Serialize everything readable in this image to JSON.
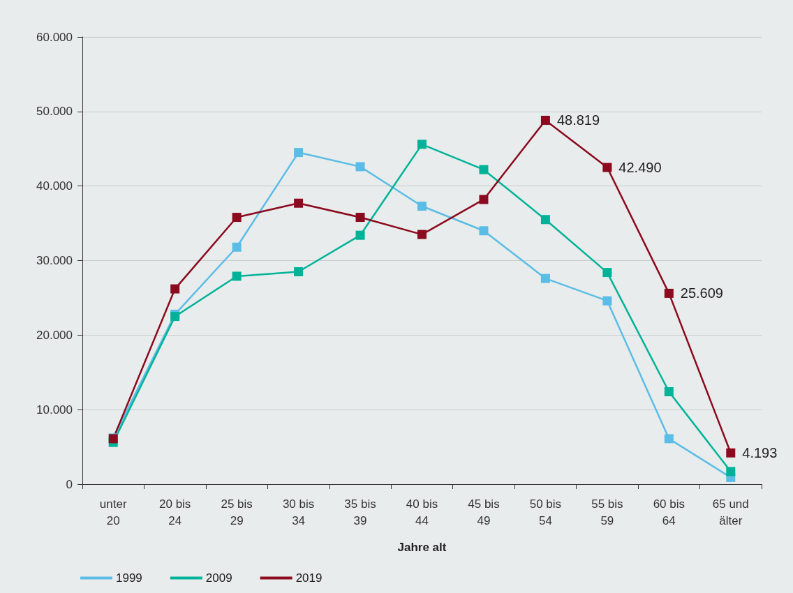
{
  "chart_data": {
    "type": "line",
    "xlabel": "Jahre alt",
    "categories": [
      "unter 20",
      "20 bis 24",
      "25 bis 29",
      "30 bis 34",
      "35 bis 39",
      "40 bis 44",
      "45 bis 49",
      "50 bis 54",
      "55 bis 59",
      "60 bis 64",
      "65 und älter"
    ],
    "series": [
      {
        "name": "1999",
        "color": "#5bbde6",
        "values": [
          6200,
          22800,
          31800,
          44500,
          42600,
          37300,
          34000,
          27600,
          24600,
          6100,
          900
        ]
      },
      {
        "name": "2009",
        "color": "#00b398",
        "values": [
          5600,
          22500,
          27900,
          28500,
          33400,
          45600,
          42200,
          35500,
          28400,
          12400,
          1700
        ]
      },
      {
        "name": "2019",
        "color": "#8b0a1e",
        "values": [
          6100,
          26200,
          35800,
          37700,
          35800,
          33500,
          38200,
          48819,
          42490,
          25609,
          4193
        ],
        "value_labels": [
          null,
          null,
          null,
          null,
          null,
          null,
          null,
          "48.819",
          "42.490",
          "25.609",
          "4.193"
        ]
      }
    ],
    "ylim": [
      0,
      60000
    ],
    "yticks": [
      {
        "value": 0,
        "label": "0"
      },
      {
        "value": 10000,
        "label": "10.000"
      },
      {
        "value": 20000,
        "label": "20.000"
      },
      {
        "value": 30000,
        "label": "30.000"
      },
      {
        "value": 40000,
        "label": "40.000"
      },
      {
        "value": 50000,
        "label": "50.000"
      },
      {
        "value": 60000,
        "label": "60.000"
      }
    ],
    "grid": "y",
    "legend": "bottom left",
    "marker": "square",
    "line_style": "solid"
  }
}
